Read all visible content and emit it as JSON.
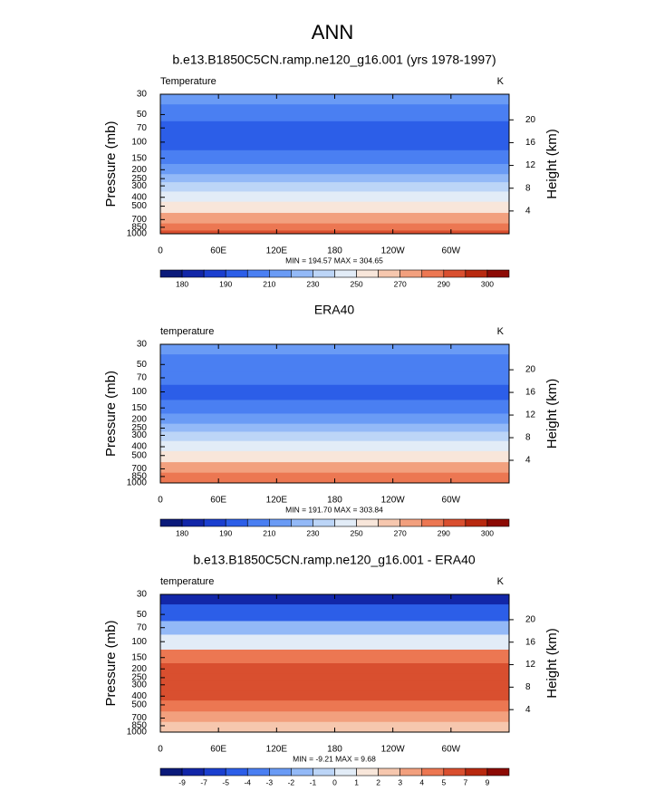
{
  "title": "ANN",
  "chart_data": [
    {
      "type": "contour",
      "title": "b.e13.B1850C5CN.ramp.ne120_g16.001 (yrs 1978-1997)",
      "variable": "Temperature",
      "units": "K",
      "ylabel": "Pressure (mb)",
      "y2label": "Height (km)",
      "log_y": true,
      "ylim": [
        1000,
        30
      ],
      "yticks": [
        30,
        50,
        70,
        100,
        150,
        200,
        250,
        300,
        400,
        500,
        700,
        850,
        1000
      ],
      "y2lim": [
        0,
        24.5
      ],
      "y2ticks": [
        4,
        8,
        12,
        16,
        20
      ],
      "xlim": [
        0,
        360
      ],
      "xticks": [
        0,
        {
          "value": 60,
          "label": "60E"
        },
        {
          "value": 120,
          "label": "120E"
        },
        180,
        {
          "value": 240,
          "label": "120W"
        },
        {
          "value": 300,
          "label": "60W"
        }
      ],
      "stats": "MIN = 194.57  MAX = 304.65",
      "pressure": [
        30,
        50,
        70,
        100,
        150,
        200,
        250,
        300,
        400,
        500,
        700,
        850,
        1000
      ],
      "values": [
        215,
        208,
        199,
        196,
        208,
        218,
        226,
        234,
        248,
        258,
        272,
        282,
        291
      ],
      "levels": [
        180,
        185,
        190,
        200,
        210,
        220,
        230,
        240,
        250,
        260,
        270,
        280,
        290,
        295,
        300
      ],
      "colorbar_ticks": [
        180,
        190,
        210,
        230,
        250,
        270,
        290,
        300
      ],
      "colors": [
        "#0b1a7a",
        "#1226a8",
        "#1b3fcf",
        "#2c5ee8",
        "#4a7ff2",
        "#6a9bf5",
        "#93b9f7",
        "#bcd5f7",
        "#e2ecf7",
        "#f8e6da",
        "#f6c7ae",
        "#f2a07e",
        "#ec7752",
        "#d94f2f",
        "#b8290f",
        "#8c0a04"
      ]
    },
    {
      "type": "contour",
      "title": "ERA40",
      "variable": "temperature",
      "units": "K",
      "ylabel": "Pressure (mb)",
      "y2label": "Height (km)",
      "log_y": true,
      "ylim": [
        1000,
        30
      ],
      "yticks": [
        30,
        50,
        70,
        100,
        150,
        200,
        250,
        300,
        400,
        500,
        700,
        850,
        1000
      ],
      "y2lim": [
        0,
        24.5
      ],
      "y2ticks": [
        4,
        8,
        12,
        16,
        20
      ],
      "xlim": [
        0,
        360
      ],
      "xticks": [
        0,
        {
          "value": 60,
          "label": "60E"
        },
        {
          "value": 120,
          "label": "120E"
        },
        180,
        {
          "value": 240,
          "label": "120W"
        },
        {
          "value": 300,
          "label": "60W"
        }
      ],
      "stats": "MIN = 191.70  MAX = 303.84",
      "pressure": [
        30,
        50,
        70,
        100,
        150,
        200,
        250,
        300,
        400,
        500,
        700,
        850,
        1000
      ],
      "values": [
        214,
        209,
        203,
        198,
        206,
        216,
        224,
        232,
        246,
        256,
        270,
        280,
        289
      ],
      "levels": [
        180,
        185,
        190,
        200,
        210,
        220,
        230,
        240,
        250,
        260,
        270,
        280,
        290,
        295,
        300
      ],
      "colorbar_ticks": [
        180,
        190,
        210,
        230,
        250,
        270,
        290,
        300
      ],
      "colors": [
        "#0b1a7a",
        "#1226a8",
        "#1b3fcf",
        "#2c5ee8",
        "#4a7ff2",
        "#6a9bf5",
        "#93b9f7",
        "#bcd5f7",
        "#e2ecf7",
        "#f8e6da",
        "#f6c7ae",
        "#f2a07e",
        "#ec7752",
        "#d94f2f",
        "#b8290f",
        "#8c0a04"
      ]
    },
    {
      "type": "contour",
      "title": "b.e13.B1850C5CN.ramp.ne120_g16.001 - ERA40",
      "variable": "temperature",
      "units": "K",
      "ylabel": "Pressure (mb)",
      "y2label": "Height (km)",
      "log_y": true,
      "ylim": [
        1000,
        30
      ],
      "yticks": [
        30,
        50,
        70,
        100,
        150,
        200,
        250,
        300,
        400,
        500,
        700,
        850,
        1000
      ],
      "y2lim": [
        0,
        24.5
      ],
      "y2ticks": [
        4,
        8,
        12,
        16,
        20
      ],
      "xlim": [
        0,
        360
      ],
      "xticks": [
        0,
        {
          "value": 60,
          "label": "60E"
        },
        {
          "value": 120,
          "label": "120E"
        },
        180,
        {
          "value": 240,
          "label": "120W"
        },
        {
          "value": 300,
          "label": "60W"
        }
      ],
      "stats": "MIN = -9.21  MAX =  9.68",
      "pressure": [
        30,
        50,
        70,
        100,
        150,
        200,
        250,
        300,
        400,
        500,
        700,
        850,
        1000
      ],
      "values": [
        -8,
        -5,
        -2,
        0.5,
        4,
        6,
        6,
        6,
        5,
        4,
        3,
        2,
        2
      ],
      "levels": [
        -9,
        -7,
        -5,
        -4,
        -3,
        -2,
        -1,
        0,
        1,
        2,
        3,
        4,
        5,
        7,
        9
      ],
      "colorbar_ticks": [
        -9,
        -7,
        -5,
        -4,
        -3,
        -2,
        -1,
        0,
        1,
        2,
        3,
        4,
        5,
        7,
        9
      ],
      "colors": [
        "#0b1a7a",
        "#1226a8",
        "#1b3fcf",
        "#2c5ee8",
        "#4a7ff2",
        "#6a9bf5",
        "#93b9f7",
        "#bcd5f7",
        "#e2ecf7",
        "#f8e6da",
        "#f6c7ae",
        "#f2a07e",
        "#ec7752",
        "#d94f2f",
        "#b8290f",
        "#8c0a04"
      ]
    }
  ]
}
